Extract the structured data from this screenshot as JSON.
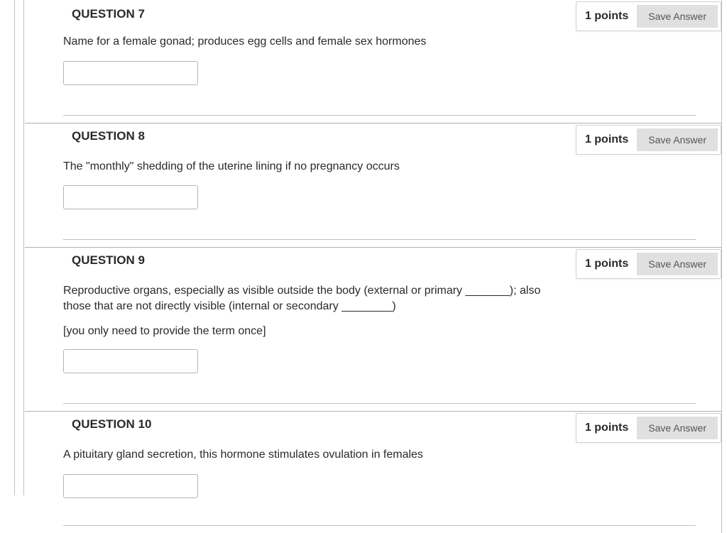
{
  "questions": [
    {
      "title": "QUESTION 7",
      "points": "1 points",
      "save_label": "Save Answer",
      "prompt": "Name for a female gonad; produces egg cells and female sex hormones",
      "note": "",
      "value": ""
    },
    {
      "title": "QUESTION 8",
      "points": "1 points",
      "save_label": "Save Answer",
      "prompt": "The \"monthly\" shedding of the uterine lining if no pregnancy occurs",
      "note": "",
      "value": ""
    },
    {
      "title": "QUESTION 9",
      "points": "1 points",
      "save_label": "Save Answer",
      "prompt": "Reproductive organs, especially as visible outside the body (external or primary _______); also those that are not directly visible (internal or secondary ________)",
      "note": "[you only need to provide the term once]",
      "value": ""
    },
    {
      "title": "QUESTION 10",
      "points": "1 points",
      "save_label": "Save Answer",
      "prompt": "A pituitary gland secretion, this hormone stimulates ovulation in females",
      "note": "",
      "value": ""
    }
  ],
  "style": {
    "font_family": "-apple-system, BlinkMacSystemFont, Segoe UI, Helvetica, Arial, sans-serif",
    "title_fontsize": 17,
    "prompt_fontsize": 16,
    "points_fontsize": 16,
    "btn_fontsize": 14,
    "text_color": "#2a2a2a",
    "btn_bg": "#e0e0e0",
    "btn_text": "#555555",
    "border_color": "#b0b0b0",
    "input_border": "#b5b5b5",
    "background": "#ffffff",
    "input_width": 190,
    "input_height": 34
  }
}
